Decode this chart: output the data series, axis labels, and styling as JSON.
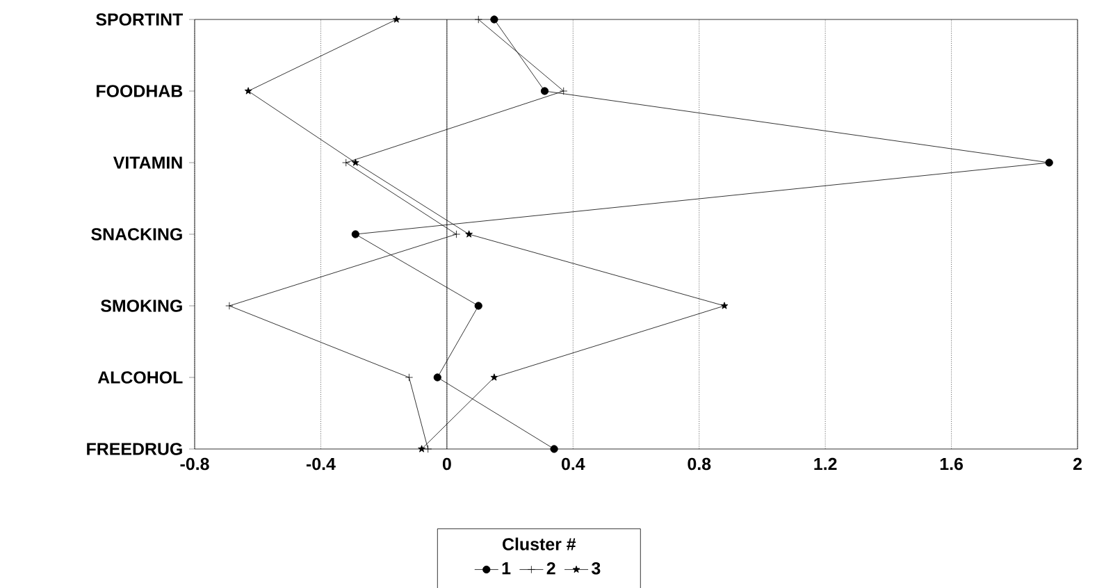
{
  "chart_data": {
    "type": "line",
    "orientation": "horizontal",
    "legend_title": "Cluster #",
    "categories": [
      "SPORTINT",
      "FOODHAB",
      "VITAMIN",
      "SNACKING",
      "SMOKING",
      "ALCOHOL",
      "FREEDRUG"
    ],
    "series": [
      {
        "name": "1",
        "color": "#000000",
        "marker": "circle",
        "values": [
          0.15,
          0.31,
          1.91,
          -0.29,
          0.1,
          -0.03,
          0.34
        ]
      },
      {
        "name": "2",
        "color": "#000000",
        "marker": "cross",
        "values": [
          0.1,
          0.37,
          -0.32,
          0.03,
          -0.69,
          -0.12,
          -0.06
        ]
      },
      {
        "name": "3",
        "color": "#000000",
        "marker": "star",
        "values": [
          -0.16,
          -0.63,
          -0.29,
          0.07,
          0.88,
          0.15,
          -0.08
        ]
      }
    ],
    "xlim": [
      -0.8,
      2
    ],
    "xticks": [
      -0.8,
      -0.4,
      0,
      0.4,
      0.8,
      1.2,
      1.6,
      2
    ],
    "grid": "x",
    "legend": "bottom",
    "line_style": "solid",
    "ref_lines": [
      {
        "axis": "x",
        "value": 0,
        "color": "#000000",
        "line_style": "solid"
      }
    ]
  }
}
